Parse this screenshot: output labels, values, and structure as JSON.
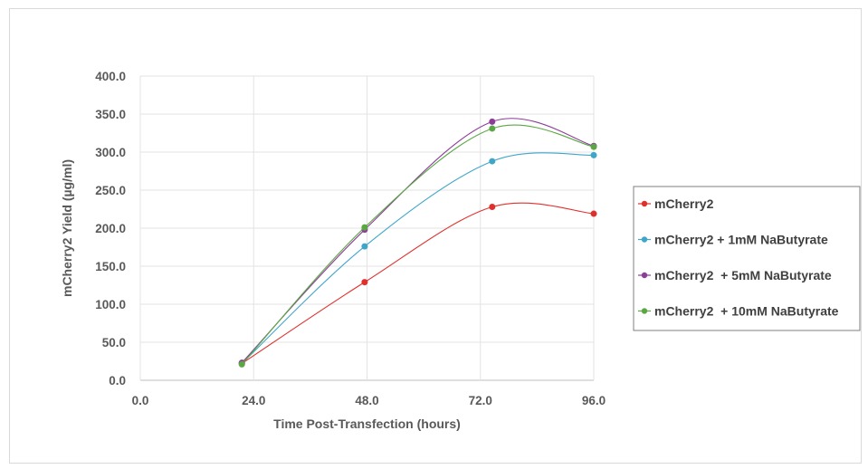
{
  "chart_data": {
    "type": "line",
    "smoothed": true,
    "title": "",
    "xlabel": "Time Post-Transfection (hours)",
    "ylabel": "mCherry2 Yield (µg/ml)",
    "xlim": [
      0,
      96
    ],
    "ylim": [
      0,
      400
    ],
    "x_ticks": [
      "0.0",
      "24.0",
      "48.0",
      "72.0",
      "96.0"
    ],
    "y_ticks": [
      "0.0",
      "50.0",
      "100.0",
      "150.0",
      "200.0",
      "250.0",
      "300.0",
      "350.0",
      "400.0"
    ],
    "grid": true,
    "legend_position": "right",
    "x": [
      21.5,
      47.5,
      74.5,
      96
    ],
    "series": [
      {
        "name": "mCherry2",
        "color": "#e0302c",
        "values": [
          22,
          129,
          228,
          219
        ]
      },
      {
        "name": "mCherry2 + 1mM NaButyrate",
        "color": "#3fa6c9",
        "values": [
          22,
          176,
          288,
          296
        ]
      },
      {
        "name": "mCherry2  + 5mM NaButyrate",
        "color": "#8e3b9a",
        "values": [
          23,
          198,
          340,
          308
        ]
      },
      {
        "name": "mCherry2  + 10mM NaButyrate",
        "color": "#5aa844",
        "values": [
          21,
          201,
          331,
          307
        ]
      }
    ]
  }
}
